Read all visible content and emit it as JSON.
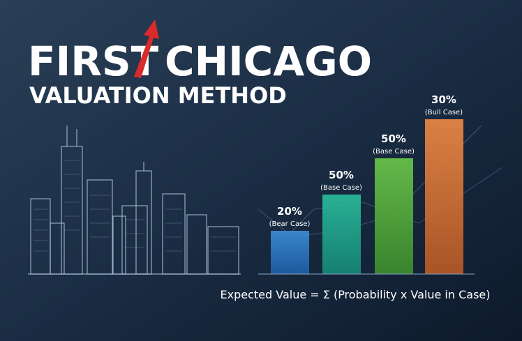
{
  "title": {
    "first": "FIRST",
    "second": "CHICAGO",
    "subtitle": "VALUATION METHOD"
  },
  "scenarios": [
    {
      "percent": "20%",
      "label": "(Bear Case)"
    },
    {
      "percent": "50%",
      "label": "(Base Case)"
    },
    {
      "percent": "50%",
      "label": "(Base Case)"
    },
    {
      "percent": "30%",
      "label": "(Bull Case)"
    }
  ],
  "formula": "Expected Value = Σ (Probability x Value in Case)"
}
